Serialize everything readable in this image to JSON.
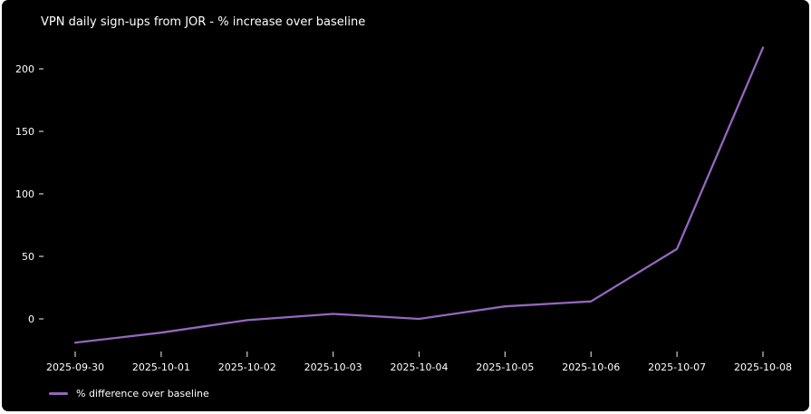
{
  "page": {
    "background": "#ffffff",
    "canvas_background": "#000000",
    "text_color": "#ffffff",
    "tick_color": "#cccccc"
  },
  "chart_data": {
    "type": "line",
    "title": "VPN daily sign-ups from JOR - % increase over baseline",
    "xlabel": "",
    "ylabel": "",
    "x": [
      "2025-09-30",
      "2025-10-01",
      "2025-10-02",
      "2025-10-03",
      "2025-10-04",
      "2025-10-05",
      "2025-10-06",
      "2025-10-07",
      "2025-10-08"
    ],
    "series": [
      {
        "name": "% difference over baseline",
        "values": [
          -19,
          -11,
          -1,
          4,
          0,
          10,
          14,
          56,
          217
        ],
        "color": "#9467bd"
      }
    ],
    "yticks": [
      0,
      50,
      100,
      150,
      200
    ],
    "ylim": [
      -30,
      235
    ],
    "grid": false,
    "legend_position": "lower-left"
  }
}
